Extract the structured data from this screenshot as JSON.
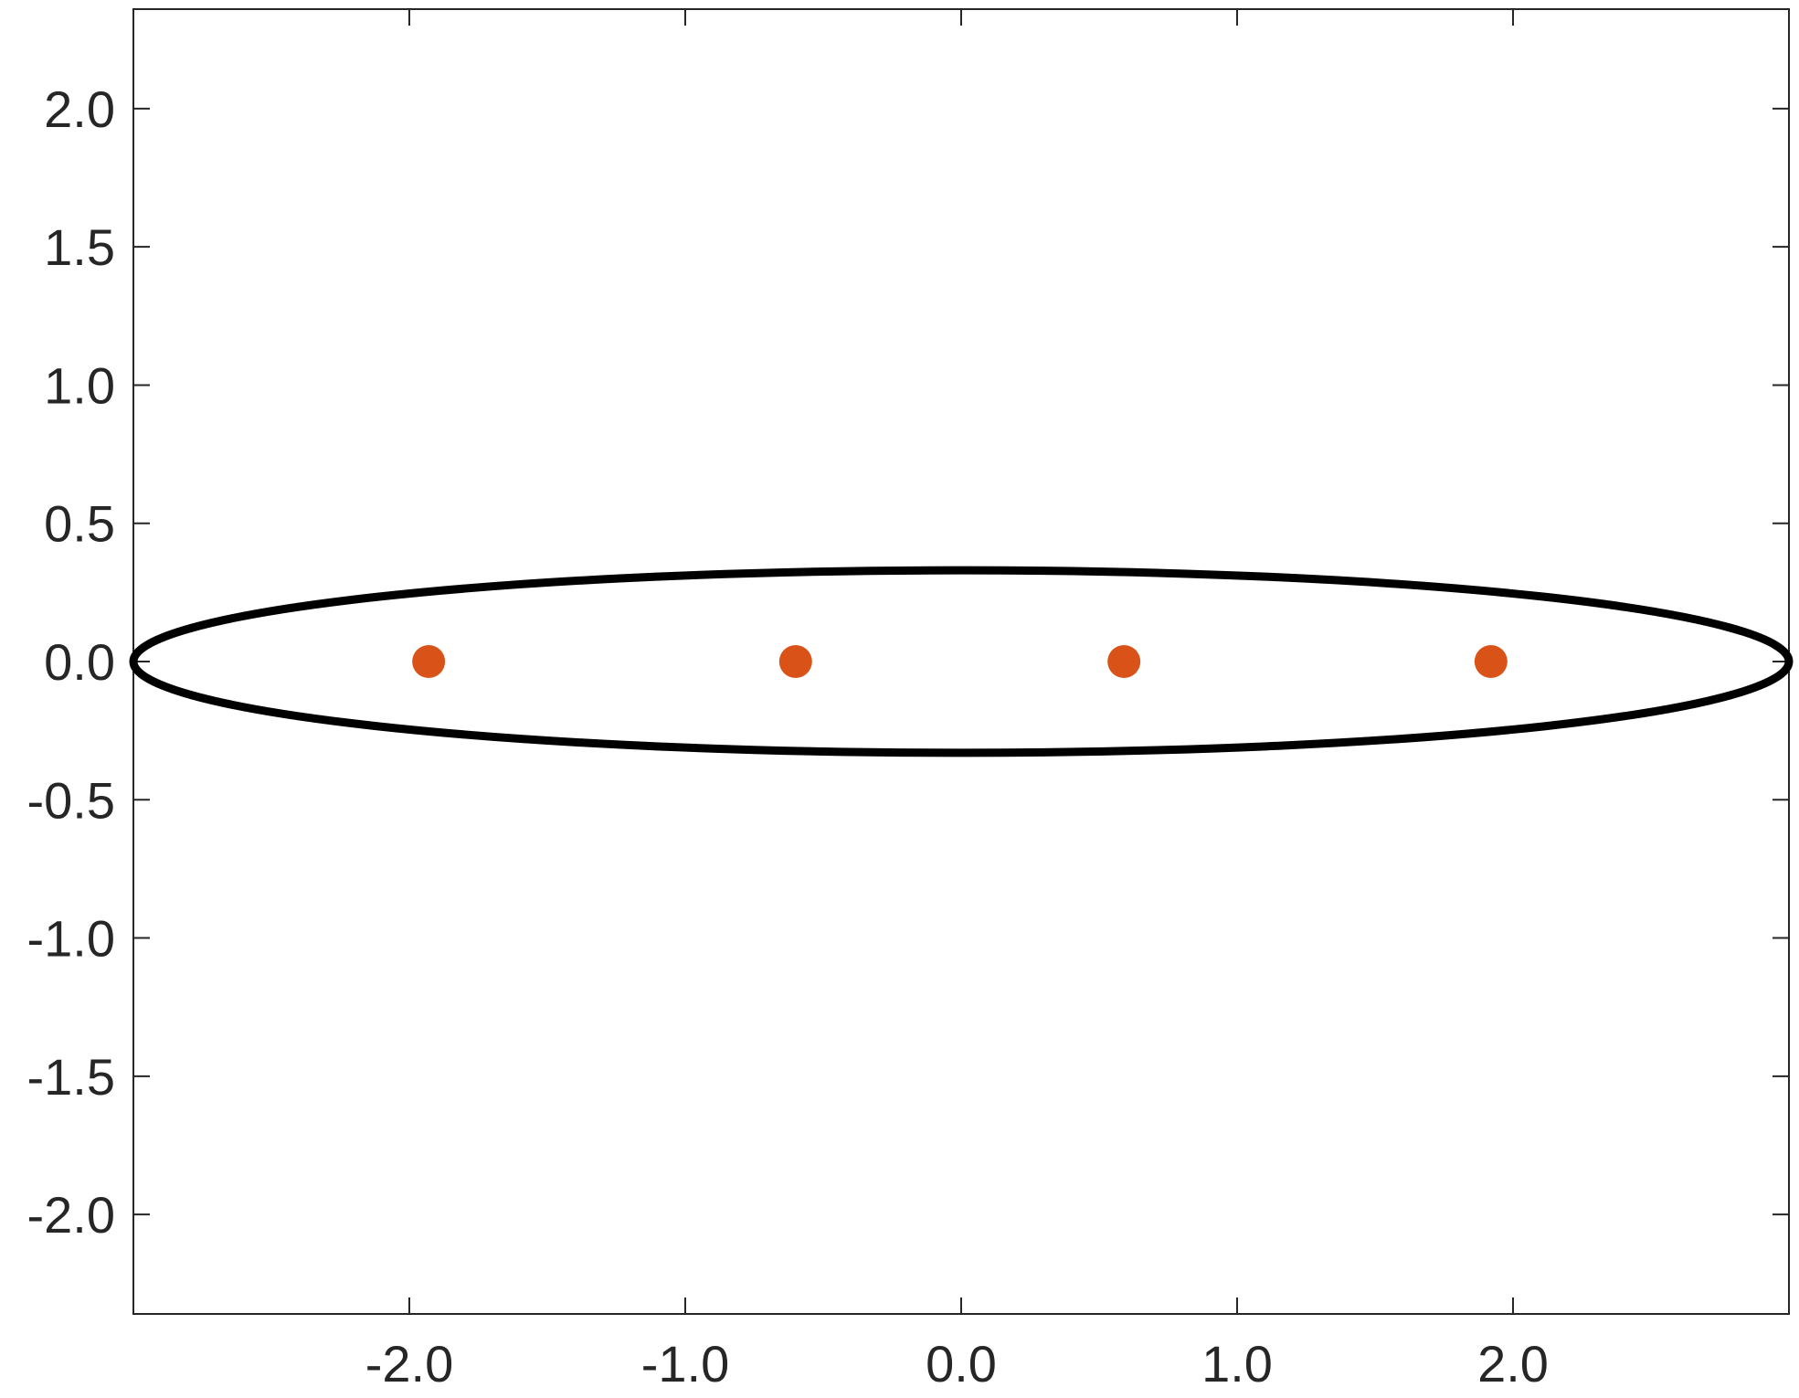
{
  "chart_data": {
    "type": "scatter",
    "title": "",
    "xlabel": "",
    "ylabel": "",
    "xlim": [
      -3.0,
      3.0
    ],
    "ylim": [
      -2.36,
      2.36
    ],
    "grid": false,
    "x_ticks": [
      -2.0,
      -1.0,
      0.0,
      1.0,
      2.0
    ],
    "x_tick_labels": [
      "-2.0",
      "-1.0",
      "0.0",
      "1.0",
      "2.0"
    ],
    "y_ticks": [
      2.0,
      1.5,
      1.0,
      0.5,
      0.0,
      -0.5,
      -1.0,
      -1.5,
      -2.0
    ],
    "y_tick_labels": [
      "2.0",
      "1.5",
      "1.0",
      "0.5",
      "0.0",
      "-0.5",
      "-1.0",
      "-1.5",
      "-2.0"
    ],
    "series": [
      {
        "type": "scatter",
        "color": "#d95319",
        "points": [
          {
            "x": -1.93,
            "y": 0.0
          },
          {
            "x": -0.6,
            "y": 0.0
          },
          {
            "x": 0.59,
            "y": 0.0
          },
          {
            "x": 1.92,
            "y": 0.0
          }
        ]
      }
    ],
    "shapes": [
      {
        "type": "ellipse",
        "color": "#000000",
        "cx": 0.0,
        "cy": 0.0,
        "rx": 3.0,
        "ry": 0.33
      }
    ],
    "colors": {
      "axis": "#262626",
      "marker": "#d95319",
      "ellipse": "#000000"
    }
  }
}
